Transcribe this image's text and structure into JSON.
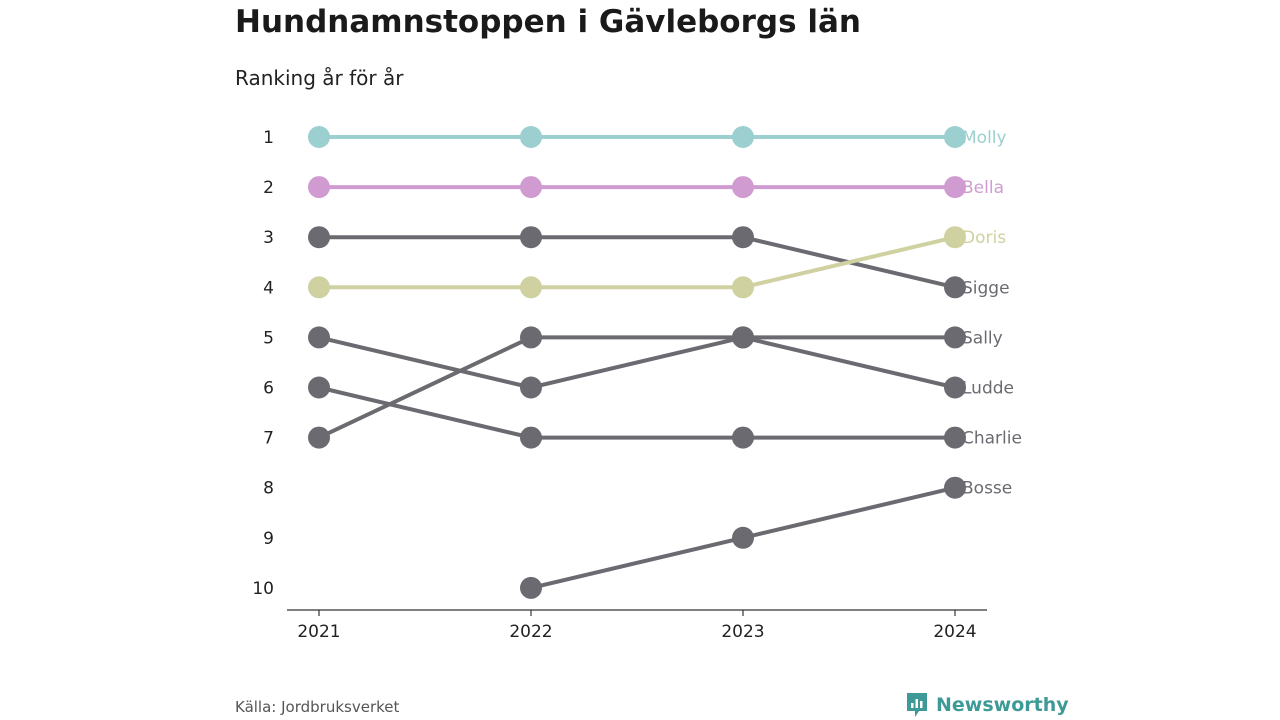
{
  "header": {
    "title": "Hundnamnstoppen i Gävleborgs län",
    "subtitle": "Ranking år för år"
  },
  "footer": {
    "source": "Källa: Jordbruksverket",
    "brand": "Newsworthy",
    "brand_icon": "newsworthy-logo-icon",
    "brand_color": "#3d9a96"
  },
  "chart_data": {
    "type": "line",
    "x": [
      "2021",
      "2022",
      "2023",
      "2024"
    ],
    "y_ticks": [
      1,
      2,
      3,
      4,
      5,
      6,
      7,
      8,
      9,
      10
    ],
    "ylim": [
      1,
      10
    ],
    "y_inverted": true,
    "grid": false,
    "legend": "direct labels at right end",
    "series": [
      {
        "name": "Molly",
        "color": "#9ccfd0",
        "values": [
          1,
          1,
          1,
          1
        ]
      },
      {
        "name": "Bella",
        "color": "#cf9bd1",
        "values": [
          2,
          2,
          2,
          2
        ]
      },
      {
        "name": "Doris",
        "color": "#cfd1a0",
        "values": [
          4,
          4,
          4,
          3
        ]
      },
      {
        "name": "Sigge",
        "color": "#6b6a71",
        "values": [
          3,
          3,
          3,
          4
        ]
      },
      {
        "name": "Sally",
        "color": "#6b6a71",
        "values": [
          7,
          5,
          5,
          5
        ]
      },
      {
        "name": "Ludde",
        "color": "#6b6a71",
        "values": [
          5,
          6,
          5,
          6
        ]
      },
      {
        "name": "Charlie",
        "color": "#6b6a71",
        "values": [
          6,
          7,
          7,
          7
        ]
      },
      {
        "name": "Bosse",
        "color": "#6b6a71",
        "values": [
          null,
          10,
          9,
          8
        ]
      }
    ]
  }
}
